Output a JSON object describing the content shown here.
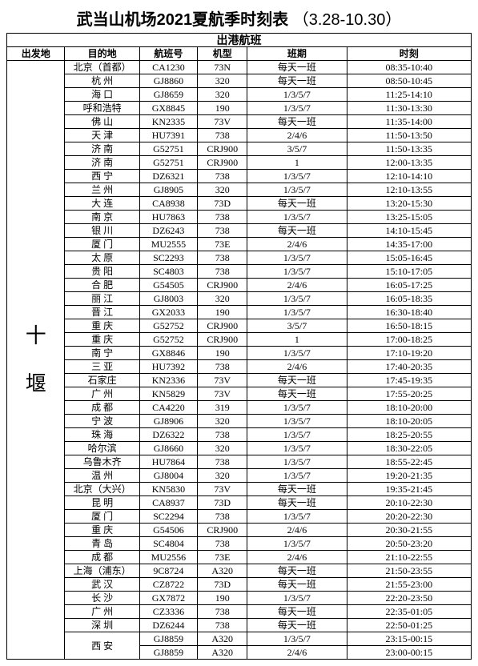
{
  "title_main": "武当山机场2021夏航季时刻表",
  "title_range": "（3.28-10.30）",
  "section_header": "出港航班",
  "columns": {
    "departure": "出发地",
    "destination": "目的地",
    "flight_no": "航班号",
    "aircraft": "机型",
    "days": "班期",
    "time": "时刻"
  },
  "origin": "十堰",
  "origin_chars": [
    "十",
    "堰"
  ],
  "rows": [
    {
      "dest": "北京（首都）",
      "fno": "CA1230",
      "ac": "73N",
      "days": "每天一班",
      "time": "08:35-10:40"
    },
    {
      "dest": "杭 州",
      "fno": "GJ8860",
      "ac": "320",
      "days": "每天一班",
      "time": "08:50-10:45"
    },
    {
      "dest": "海 口",
      "fno": "GJ8659",
      "ac": "320",
      "days": "1/3/5/7",
      "time": "11:25-14:10"
    },
    {
      "dest": "呼和浩特",
      "fno": "GX8845",
      "ac": "190",
      "days": "1/3/5/7",
      "time": "11:30-13:30"
    },
    {
      "dest": "佛 山",
      "fno": "KN2335",
      "ac": "73V",
      "days": "每天一班",
      "time": "11:35-14:00"
    },
    {
      "dest": "天 津",
      "fno": "HU7391",
      "ac": "738",
      "days": "2/4/6",
      "time": "11:50-13:50"
    },
    {
      "dest": "济 南",
      "fno": "G52751",
      "ac": "CRJ900",
      "days": "3/5/7",
      "time": "11:50-13:35"
    },
    {
      "dest": "济 南",
      "fno": "G52751",
      "ac": "CRJ900",
      "days": "1",
      "time": "12:00-13:35"
    },
    {
      "dest": "西 宁",
      "fno": "DZ6321",
      "ac": "738",
      "days": "1/3/5/7",
      "time": "12:10-14:10"
    },
    {
      "dest": "兰 州",
      "fno": "GJ8905",
      "ac": "320",
      "days": "1/3/5/7",
      "time": "12:10-13:55"
    },
    {
      "dest": "大 连",
      "fno": "CA8938",
      "ac": "73D",
      "days": "每天一班",
      "time": "13:20-15:30"
    },
    {
      "dest": "南 京",
      "fno": "HU7863",
      "ac": "738",
      "days": "1/3/5/7",
      "time": "13:25-15:05"
    },
    {
      "dest": "银 川",
      "fno": "DZ6243",
      "ac": "738",
      "days": "每天一班",
      "time": "14:10-15:45"
    },
    {
      "dest": "厦 门",
      "fno": "MU2555",
      "ac": "73E",
      "days": "2/4/6",
      "time": "14:35-17:00"
    },
    {
      "dest": "太 原",
      "fno": "SC2293",
      "ac": "738",
      "days": "1/3/5/7",
      "time": "15:05-16:45"
    },
    {
      "dest": "贵 阳",
      "fno": "SC4803",
      "ac": "738",
      "days": "1/3/5/7",
      "time": "15:10-17:05"
    },
    {
      "dest": "合 肥",
      "fno": "G54505",
      "ac": "CRJ900",
      "days": "2/4/6",
      "time": "16:05-17:25"
    },
    {
      "dest": "丽 江",
      "fno": "GJ8003",
      "ac": "320",
      "days": "1/3/5/7",
      "time": "16:05-18:35"
    },
    {
      "dest": "晋 江",
      "fno": "GX2033",
      "ac": "190",
      "days": "1/3/5/7",
      "time": "16:30-18:40"
    },
    {
      "dest": "重 庆",
      "fno": "G52752",
      "ac": "CRJ900",
      "days": "3/5/7",
      "time": "16:50-18:15"
    },
    {
      "dest": "重 庆",
      "fno": "G52752",
      "ac": "CRJ900",
      "days": "1",
      "time": "17:00-18:25"
    },
    {
      "dest": "南 宁",
      "fno": "GX8846",
      "ac": "190",
      "days": "1/3/5/7",
      "time": "17:10-19:20"
    },
    {
      "dest": "三 亚",
      "fno": "HU7392",
      "ac": "738",
      "days": "2/4/6",
      "time": "17:40-20:35"
    },
    {
      "dest": "石家庄",
      "fno": "KN2336",
      "ac": "73V",
      "days": "每天一班",
      "time": "17:45-19:35"
    },
    {
      "dest": "广 州",
      "fno": "KN5829",
      "ac": "73V",
      "days": "每天一班",
      "time": "17:55-20:25"
    },
    {
      "dest": "成 都",
      "fno": "CA4220",
      "ac": "319",
      "days": "1/3/5/7",
      "time": "18:10-20:00"
    },
    {
      "dest": "宁 波",
      "fno": "GJ8906",
      "ac": "320",
      "days": "1/3/5/7",
      "time": "18:10-20:05"
    },
    {
      "dest": "珠 海",
      "fno": "DZ6322",
      "ac": "738",
      "days": "1/3/5/7",
      "time": "18:25-20:55"
    },
    {
      "dest": "哈尔滨",
      "fno": "GJ8660",
      "ac": "320",
      "days": "1/3/5/7",
      "time": "18:30-22:05"
    },
    {
      "dest": "乌鲁木齐",
      "fno": "HU7864",
      "ac": "738",
      "days": "1/3/5/7",
      "time": "18:55-22:45"
    },
    {
      "dest": "温 州",
      "fno": "GJ8004",
      "ac": "320",
      "days": "1/3/5/7",
      "time": "19:20-21:35"
    },
    {
      "dest": "北京（大兴）",
      "fno": "KN5830",
      "ac": "73V",
      "days": "每天一班",
      "time": "19:35-21:45"
    },
    {
      "dest": "昆 明",
      "fno": "CA8937",
      "ac": "73D",
      "days": "每天一班",
      "time": "20:10-22:30"
    },
    {
      "dest": "厦 门",
      "fno": "SC2294",
      "ac": "738",
      "days": "1/3/5/7",
      "time": "20:20-22:30"
    },
    {
      "dest": "重 庆",
      "fno": "G54506",
      "ac": "CRJ900",
      "days": "2/4/6",
      "time": "20:30-21:55"
    },
    {
      "dest": "青 岛",
      "fno": "SC4804",
      "ac": "738",
      "days": "1/3/5/7",
      "time": "20:50-23:20"
    },
    {
      "dest": "成 都",
      "fno": "MU2556",
      "ac": "73E",
      "days": "2/4/6",
      "time": "21:10-22:55"
    },
    {
      "dest": "上海（浦东）",
      "fno": "9C8724",
      "ac": "A320",
      "days": "每天一班",
      "time": "21:50-23:55"
    },
    {
      "dest": "武 汉",
      "fno": "CZ8722",
      "ac": "73D",
      "days": "每天一班",
      "time": "21:55-23:00"
    },
    {
      "dest": "长 沙",
      "fno": "GX7872",
      "ac": "190",
      "days": "1/3/5/7",
      "time": "22:20-23:50"
    },
    {
      "dest": "广 州",
      "fno": "CZ3336",
      "ac": "738",
      "days": "每天一班",
      "time": "22:35-01:05"
    },
    {
      "dest": "深 圳",
      "fno": "DZ6244",
      "ac": "738",
      "days": "每天一班",
      "time": "22:50-01:25"
    },
    {
      "dest": "西 安",
      "fno": "GJ8859",
      "ac": "A320",
      "days": "1/3/5/7",
      "time": "23:15-00:15",
      "merge_dest": 2
    },
    {
      "dest": "",
      "fno": "GJ8859",
      "ac": "A320",
      "days": "2/4/6",
      "time": "23:00-00:15",
      "skip_dest": true
    }
  ]
}
